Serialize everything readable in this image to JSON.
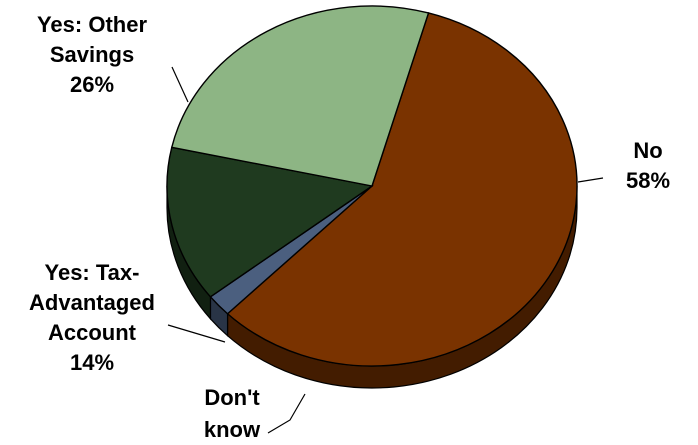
{
  "chart_data": {
    "type": "pie",
    "title": "",
    "slices": [
      {
        "label_lines": [
          "No",
          "58%"
        ],
        "value": 58,
        "color": "#7A3300"
      },
      {
        "label_lines": [
          "Don't",
          "know"
        ],
        "value": 2,
        "color": "#4B5F7F"
      },
      {
        "label_lines": [
          "Yes: Tax-",
          "Advantaged",
          "Account",
          "14%"
        ],
        "value": 14,
        "color": "#1F3A1F"
      },
      {
        "label_lines": [
          "Yes: Other",
          "Savings",
          "26%"
        ],
        "value": 26,
        "color": "#8DB584"
      }
    ],
    "style": "3d-tilted"
  }
}
